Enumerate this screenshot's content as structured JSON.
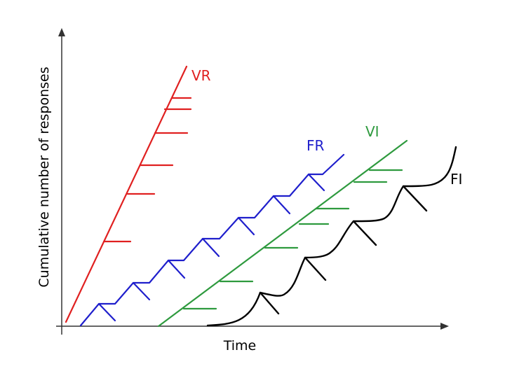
{
  "axes": {
    "x_label": "Time",
    "y_label": "Cumulative number of responses"
  },
  "series": [
    {
      "id": "vr",
      "label": "VR",
      "color": "#e02020"
    },
    {
      "id": "fr",
      "label": "FR",
      "color": "#1f1fcc"
    },
    {
      "id": "vi",
      "label": "VI",
      "color": "#2e9a3e"
    },
    {
      "id": "fi",
      "label": "FI",
      "color": "#000000"
    }
  ]
}
